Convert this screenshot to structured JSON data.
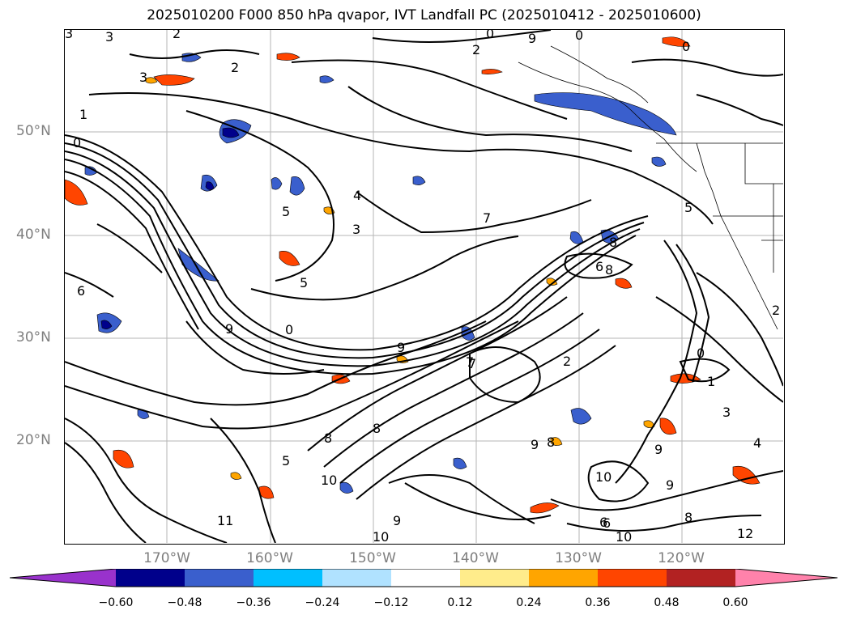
{
  "title": "2025010200 F000 850 hPa qvapor, IVT Landfall PC (2025010412 - 2025010600)",
  "lat_labels": [
    "50°N",
    "40°N",
    "30°N",
    "20°N"
  ],
  "lon_labels": [
    "170°W",
    "160°W",
    "150°W",
    "140°W",
    "130°W",
    "120°W"
  ],
  "colorbar": {
    "colors": [
      "#9932cc",
      "#00008b",
      "#3a5fcd",
      "#00bfff",
      "#b0e2ff",
      "#ffffff",
      "#ffec8b",
      "#ffa500",
      "#ff4500",
      "#b22222",
      "#ff82ab"
    ],
    "ticks": [
      "−0.60",
      "−0.48",
      "−0.36",
      "−0.24",
      "−0.12",
      "0.12",
      "0.24",
      "0.36",
      "0.48",
      "0.60"
    ]
  },
  "contour_labels": [
    "3",
    "3",
    "2",
    "0",
    "9",
    "0",
    "2",
    "3",
    "2",
    "0",
    "1",
    "0",
    "5",
    "4",
    "3",
    "5",
    "0",
    "7",
    "8",
    "6",
    "8",
    "5",
    "7",
    "2",
    "0",
    "2",
    "9",
    "9",
    "8",
    "8",
    "6",
    "1",
    "3",
    "4",
    "9",
    "8",
    "6",
    "10",
    "9",
    "10",
    "11",
    "12",
    "10",
    "5",
    "9",
    "8",
    "7",
    "6",
    "10",
    "9"
  ]
}
